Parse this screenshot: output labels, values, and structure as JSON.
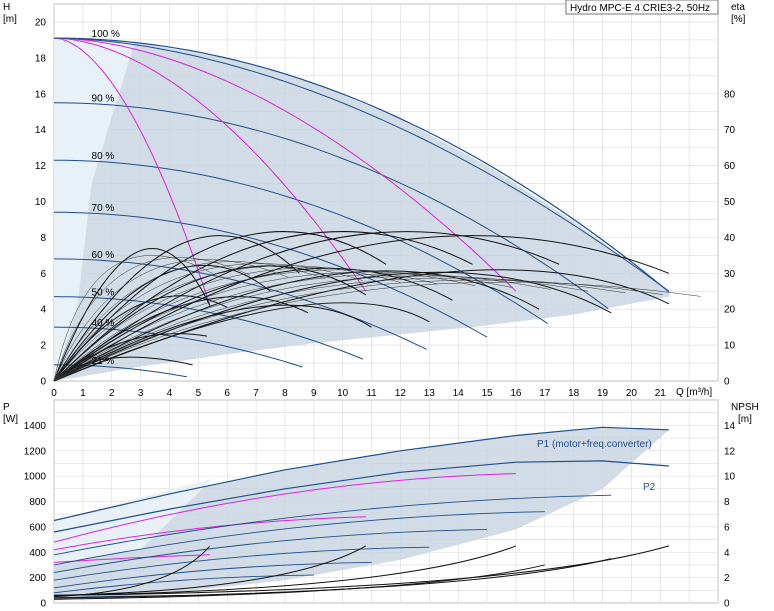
{
  "chart_data": [
    {
      "panel": "top",
      "type": "line",
      "title": "Hydro MPC-E 4 CRIE3-2, 50Hz",
      "ylabel_left": "H",
      "ylabel_left_unit": "[m]",
      "ylabel_right": "eta",
      "ylabel_right_unit": "[%]",
      "xlabel": "Q [m³/h]",
      "xlim": [
        0,
        23
      ],
      "ylim": [
        0,
        21
      ],
      "x_ticks": [
        "0",
        "1",
        "2",
        "3",
        "4",
        "5",
        "6",
        "7",
        "8",
        "9",
        "10",
        "11",
        "12",
        "13",
        "14",
        "15",
        "16",
        "17",
        "18",
        "19",
        "20",
        "21"
      ],
      "y_ticks": [
        "0",
        "2",
        "4",
        "6",
        "8",
        "10",
        "12",
        "14",
        "16",
        "18",
        "20"
      ],
      "y2_ticks": [
        "0",
        "10",
        "20",
        "30",
        "40",
        "50",
        "60",
        "70",
        "80"
      ],
      "y2_lim": [
        0,
        105
      ],
      "speed_labels": [
        {
          "text": "100 %",
          "q": 1.3,
          "h": 19.1
        },
        {
          "text": "90 %",
          "q": 1.3,
          "h": 15.5
        },
        {
          "text": "80 %",
          "q": 1.3,
          "h": 12.3
        },
        {
          "text": "70 %",
          "q": 1.3,
          "h": 9.4
        },
        {
          "text": "60 %",
          "q": 1.3,
          "h": 6.8
        },
        {
          "text": "50 %",
          "q": 1.3,
          "h": 4.7
        },
        {
          "text": "40 %",
          "q": 1.3,
          "h": 3.0
        },
        {
          "text": "21 %",
          "q": 1.3,
          "h": 0.9
        }
      ],
      "envelope_h": [
        [
          0,
          19.1
        ],
        [
          3,
          18.8
        ],
        [
          6,
          18.0
        ],
        [
          9,
          16.6
        ],
        [
          12,
          14.6
        ],
        [
          15,
          12.0
        ],
        [
          18,
          8.9
        ],
        [
          21.3,
          5.0
        ],
        [
          21.3,
          4.7
        ],
        [
          18,
          3.7
        ],
        [
          15,
          3.1
        ],
        [
          12,
          2.6
        ],
        [
          9,
          2.1
        ],
        [
          6,
          1.5
        ],
        [
          3,
          0.8
        ],
        [
          0,
          0
        ]
      ],
      "system_curves_qh": [
        {
          "name": "1 pump 100%",
          "qmax": 5.4,
          "h0": 19.1
        },
        {
          "name": "2 pumps 100%",
          "qmax": 10.8,
          "h0": 19.1
        },
        {
          "name": "3 pumps 100%",
          "qmax": 16.0,
          "h0": 19.1
        },
        {
          "name": "4 pumps 100%",
          "qmax": 21.3,
          "h0": 19.1
        }
      ],
      "speed_curves_h0": [
        15.5,
        12.3,
        9.4,
        6.8,
        4.7,
        3.0,
        0.9
      ],
      "speed_curves_qmax": [
        19.2,
        17.1,
        15.0,
        12.9,
        10.7,
        8.6,
        4.6
      ]
    },
    {
      "panel": "bottom",
      "type": "line",
      "ylabel_left": "P",
      "ylabel_left_unit": "[W]",
      "ylabel_right": "NPSH",
      "ylabel_right_unit": "[m]",
      "xlim": [
        0,
        23
      ],
      "ylim": [
        0,
        1600
      ],
      "y_ticks": [
        "0",
        "200",
        "400",
        "600",
        "800",
        "1000",
        "1200",
        "1400"
      ],
      "y2_ticks": [
        "0",
        "2",
        "4",
        "6",
        "8",
        "10",
        "12",
        "14"
      ],
      "y2_lim": [
        0,
        16
      ],
      "series": [
        {
          "name": "P1 (motor+freq.converter)",
          "points": [
            [
              0,
              650
            ],
            [
              4,
              860
            ],
            [
              8,
              1050
            ],
            [
              12,
              1200
            ],
            [
              16,
              1320
            ],
            [
              19,
              1385
            ],
            [
              21.3,
              1365
            ]
          ]
        },
        {
          "name": "P2",
          "points": [
            [
              0,
              560
            ],
            [
              4,
              740
            ],
            [
              8,
              900
            ],
            [
              12,
              1030
            ],
            [
              16,
              1110
            ],
            [
              19,
              1120
            ],
            [
              21.3,
              1080
            ]
          ]
        }
      ]
    }
  ]
}
